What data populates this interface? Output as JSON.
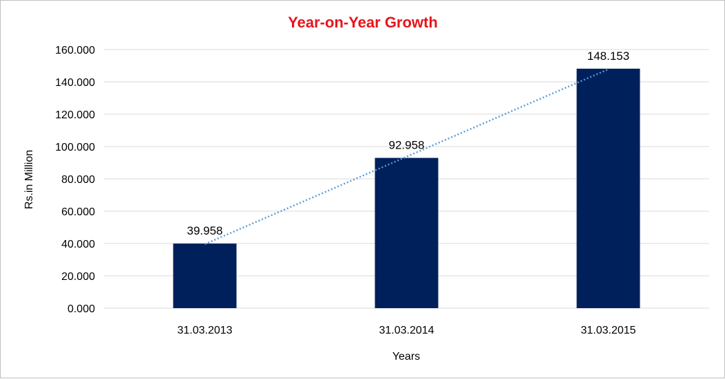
{
  "chart_data": {
    "type": "bar",
    "title": "Year-on-Year Growth",
    "xlabel": "Years",
    "ylabel": "Rs.in Million",
    "categories": [
      "31.03.2013",
      "31.03.2014",
      "31.03.2015"
    ],
    "values": [
      39.958,
      92.958,
      148.153
    ],
    "data_labels": [
      "39.958",
      "92.958",
      "148.153"
    ],
    "ylim": [
      0,
      160
    ],
    "yticks": [
      "0.000",
      "20.000",
      "40.000",
      "60.000",
      "80.000",
      "100.000",
      "120.000",
      "140.000",
      "160.000"
    ],
    "grid": true,
    "legend": "none",
    "trendline": {
      "type": "linear",
      "style": "dotted"
    },
    "colors": {
      "bar": "#00205b",
      "trendline": "#5b9bd5",
      "title": "#e8141c",
      "grid": "#d9d9d9"
    }
  }
}
